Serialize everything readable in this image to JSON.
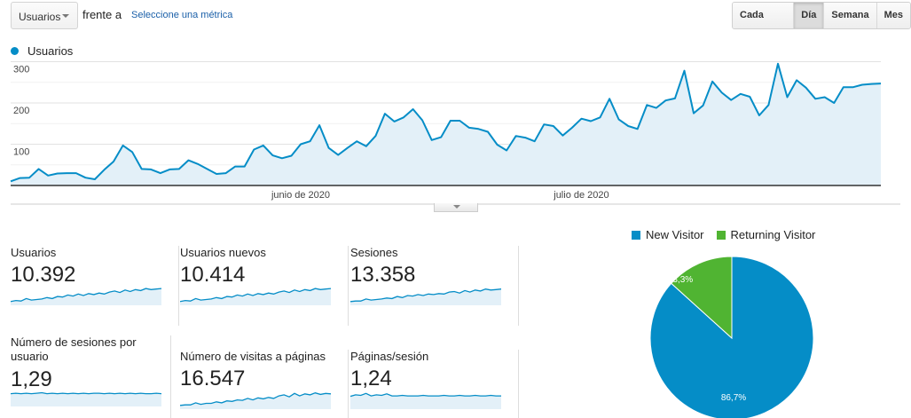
{
  "toolbar": {
    "metric_select": "Usuarios",
    "versus_label": "frente a",
    "select_metric_link": "Seleccione una métrica",
    "periods": [
      {
        "label": "Cada hora",
        "active": false
      },
      {
        "label": "Día",
        "active": true
      },
      {
        "label": "Semana",
        "active": false
      },
      {
        "label": "Mes",
        "active": false
      }
    ]
  },
  "colors": {
    "primary": "#058dc7",
    "area_fill": "#e3f0f8",
    "new_visitor": "#058dc7",
    "returning_visitor": "#50b432",
    "grid": "#e6e6e6"
  },
  "chart_data": [
    {
      "type": "area",
      "title": "",
      "legend": [
        "Usuarios"
      ],
      "xlabel": "",
      "ylabel": "",
      "ylim": [
        0,
        300
      ],
      "yticks": [
        100,
        200,
        300
      ],
      "x_tick_labels": [
        {
          "label": "junio de 2020",
          "index": 31
        },
        {
          "label": "julio de 2020",
          "index": 61
        }
      ],
      "grid": true,
      "series": [
        {
          "name": "Usuarios",
          "values": [
            10,
            18,
            19,
            40,
            24,
            29,
            30,
            30,
            19,
            15,
            38,
            58,
            97,
            81,
            40,
            39,
            30,
            39,
            40,
            61,
            52,
            40,
            28,
            30,
            46,
            46,
            87,
            97,
            73,
            66,
            72,
            100,
            107,
            146,
            91,
            74,
            91,
            107,
            95,
            120,
            174,
            155,
            165,
            185,
            158,
            110,
            117,
            157,
            157,
            140,
            137,
            130,
            99,
            85,
            120,
            116,
            107,
            148,
            144,
            121,
            140,
            162,
            156,
            165,
            210,
            160,
            144,
            137,
            195,
            188,
            206,
            211,
            278,
            175,
            194,
            252,
            225,
            207,
            222,
            215,
            170,
            195,
            295,
            214,
            255,
            237,
            210,
            214,
            200,
            238,
            238,
            244,
            246,
            247
          ]
        }
      ]
    },
    {
      "type": "pie",
      "title": "",
      "categories": [
        "New Visitor",
        "Returning Visitor"
      ],
      "values": [
        86.7,
        13.3
      ],
      "labels": [
        "86,7%",
        "13,3%"
      ],
      "legend_position": "top"
    }
  ],
  "main_chart": {
    "legend_label": "Usuarios",
    "y_labels": [
      "300",
      "200",
      "100"
    ],
    "x_labels": [
      "junio de 2020",
      "julio de 2020"
    ]
  },
  "cards": [
    {
      "label": "Usuarios",
      "value": "10.392",
      "spark": [
        12,
        14,
        13,
        18,
        15,
        16,
        17,
        20,
        18,
        22,
        21,
        25,
        23,
        27,
        24,
        28,
        26,
        29,
        27,
        31,
        33,
        30,
        35,
        32,
        36,
        34,
        38,
        36,
        37,
        38
      ]
    },
    {
      "label": "Usuarios nuevos",
      "value": "10.414",
      "spark": [
        12,
        14,
        13,
        18,
        15,
        16,
        17,
        20,
        18,
        22,
        21,
        25,
        23,
        27,
        24,
        28,
        26,
        29,
        27,
        31,
        33,
        30,
        35,
        32,
        36,
        34,
        38,
        36,
        37,
        38
      ]
    },
    {
      "label": "Sesiones",
      "value": "13.358",
      "spark": [
        12,
        13,
        13,
        17,
        15,
        16,
        17,
        19,
        18,
        22,
        20,
        24,
        23,
        26,
        24,
        27,
        26,
        28,
        27,
        31,
        32,
        29,
        34,
        31,
        35,
        33,
        37,
        35,
        36,
        37
      ]
    },
    {
      "label": "Número de sesiones por usuario",
      "value": "1,29",
      "spark": [
        30,
        31,
        30,
        31,
        30,
        31,
        32,
        30,
        31,
        30,
        31,
        30,
        31,
        30,
        31,
        30,
        31,
        31,
        30,
        31,
        30,
        31,
        30,
        31,
        30,
        31,
        30,
        30,
        31,
        30
      ]
    },
    {
      "label": "Número de visitas a páginas",
      "value": "16.547",
      "spark": [
        12,
        13,
        13,
        17,
        14,
        16,
        16,
        19,
        17,
        21,
        20,
        23,
        22,
        26,
        23,
        27,
        25,
        28,
        26,
        31,
        33,
        29,
        36,
        31,
        35,
        33,
        37,
        34,
        36,
        35
      ]
    },
    {
      "label": "Páginas/sesión",
      "value": "1,24",
      "spark": [
        30,
        33,
        32,
        36,
        31,
        33,
        32,
        35,
        31,
        31,
        32,
        31,
        31,
        31,
        32,
        31,
        31,
        31,
        32,
        31,
        31,
        32,
        31,
        31,
        32,
        31,
        31,
        32,
        31,
        31
      ]
    }
  ],
  "pie": {
    "legend": [
      {
        "label": "New Visitor"
      },
      {
        "label": "Returning Visitor"
      }
    ],
    "slices": [
      {
        "label": "86,7%",
        "value": 86.7
      },
      {
        "label": "13,3%",
        "value": 13.3
      }
    ]
  }
}
